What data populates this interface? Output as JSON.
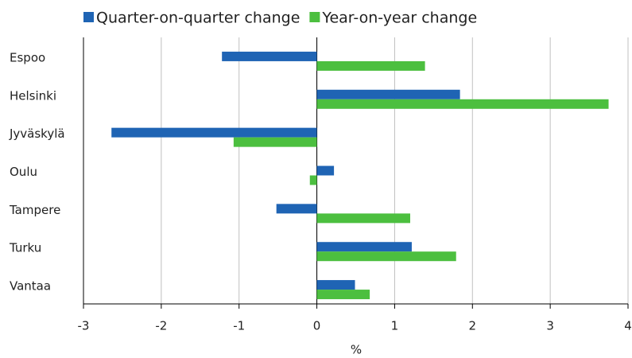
{
  "chart_data": {
    "type": "hbar",
    "x_label": "%",
    "categories": [
      "Espoo",
      "Helsinki",
      "Jyväskylä",
      "Oulu",
      "Tampere",
      "Turku",
      "Vantaa"
    ],
    "series": [
      {
        "name": "Quarter-on-quarter change",
        "color": "#1f64b4",
        "values": [
          -1.22,
          1.84,
          -2.64,
          0.22,
          -0.52,
          1.22,
          0.49
        ]
      },
      {
        "name": "Year-on-year change",
        "color": "#4cbf3f",
        "values": [
          1.39,
          3.75,
          -1.07,
          -0.09,
          1.2,
          1.79,
          0.68
        ]
      }
    ],
    "xlim": [
      -3,
      4
    ],
    "xticks": [
      -3,
      -2,
      -1,
      0,
      1,
      2,
      3,
      4
    ],
    "grid": true,
    "legend": "top"
  }
}
